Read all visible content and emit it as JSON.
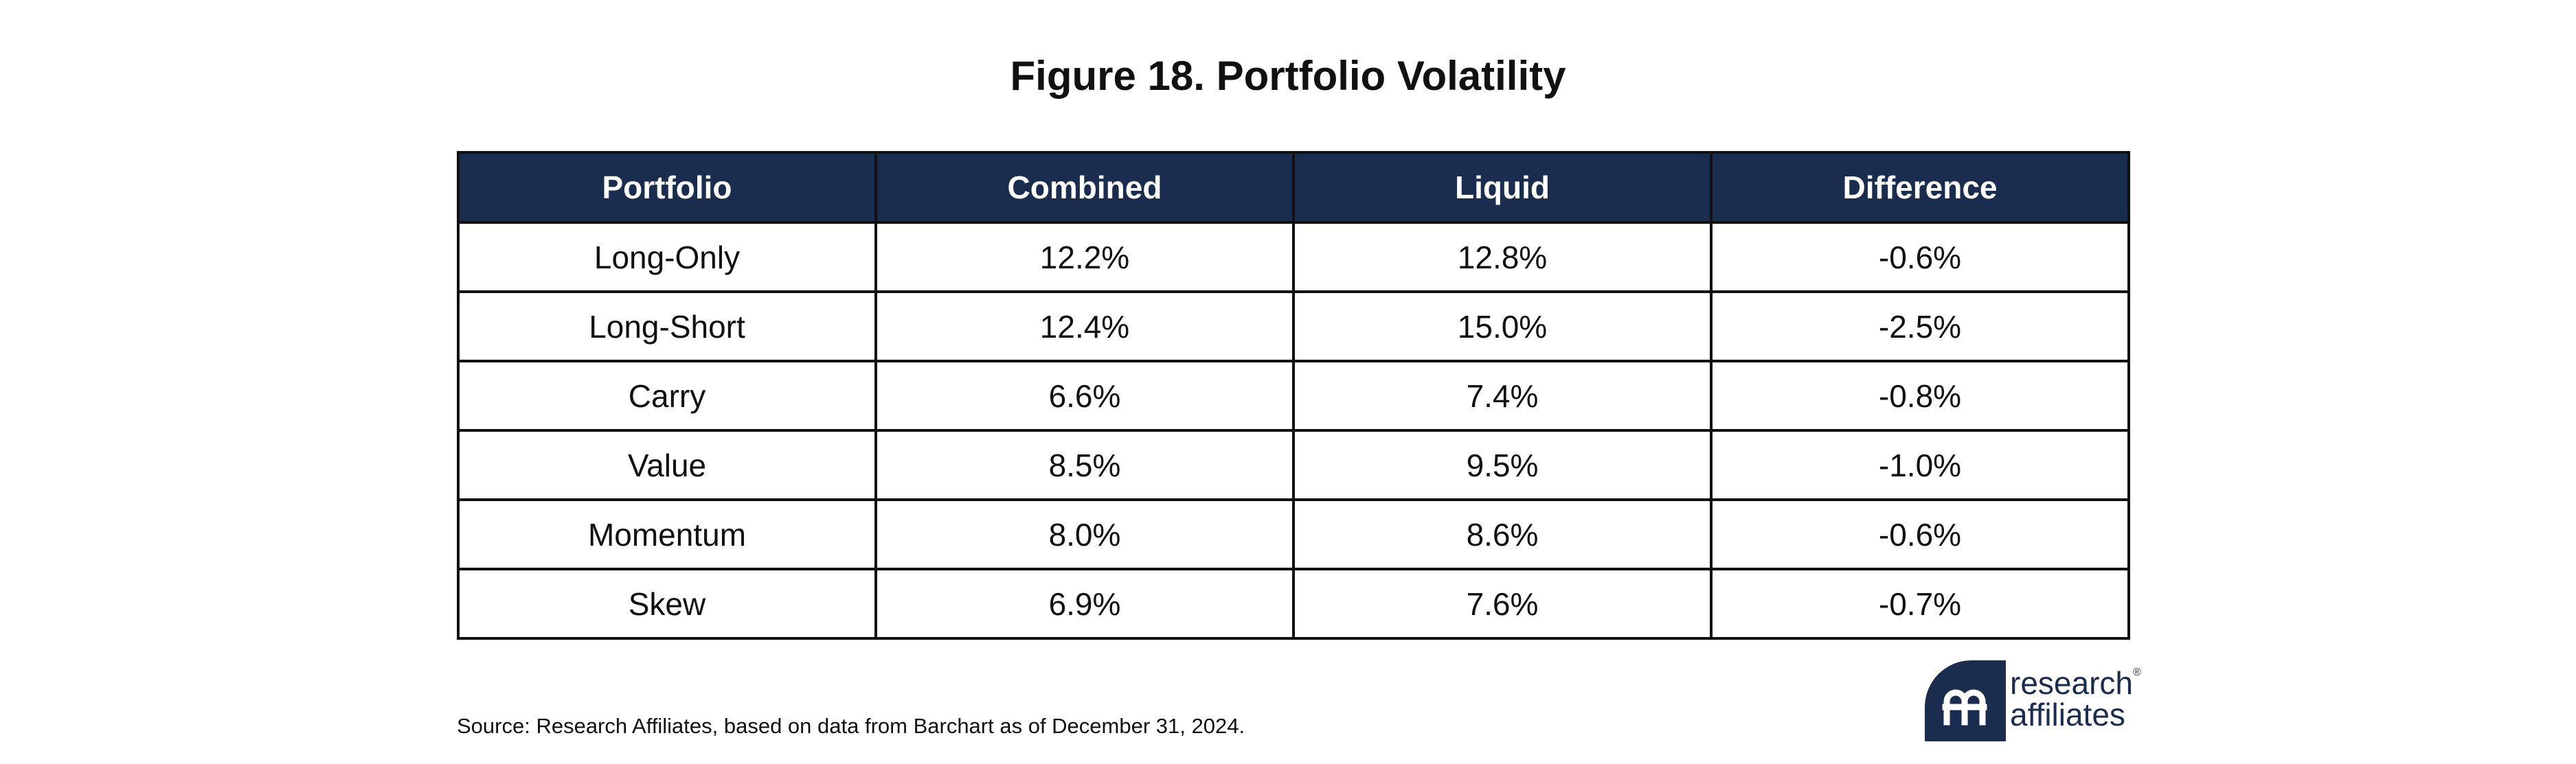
{
  "chart_data": {
    "type": "table",
    "title": "Figure 18. Portfolio Volatility",
    "columns": [
      "Portfolio",
      "Combined",
      "Liquid",
      "Difference"
    ],
    "rows": [
      [
        "Long-Only",
        "12.2%",
        "12.8%",
        "-0.6%"
      ],
      [
        "Long-Short",
        "12.4%",
        "15.0%",
        "-2.5%"
      ],
      [
        "Carry",
        "6.6%",
        "7.4%",
        "-0.8%"
      ],
      [
        "Value",
        "8.5%",
        "9.5%",
        "-1.0%"
      ],
      [
        "Momentum",
        "8.0%",
        "8.6%",
        "-0.6%"
      ],
      [
        "Skew",
        "6.9%",
        "7.6%",
        "-0.7%"
      ]
    ]
  },
  "source": "Source: Research Affiliates, based on data from Barchart as of December 31, 2024.",
  "logo": {
    "line1": "research",
    "line2": "affiliates",
    "registered_mark": "®",
    "brand_color": "#1b2d4f"
  },
  "colors": {
    "header_background": "#1b2d4f",
    "header_text": "#ffffff",
    "border": "#111111"
  }
}
